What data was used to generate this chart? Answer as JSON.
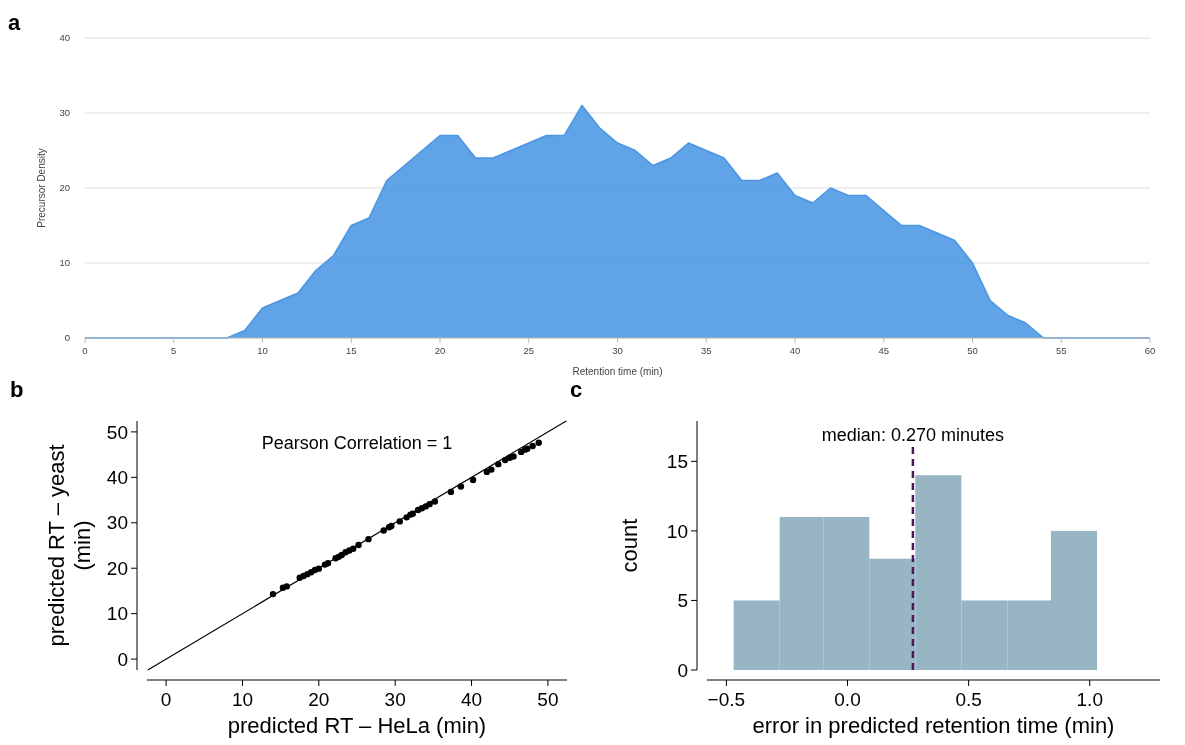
{
  "chart_data": [
    {
      "type": "area",
      "title": "a",
      "xlabel": "Retention time (min)",
      "ylabel": "Precursor Density",
      "xlim": [
        0,
        60
      ],
      "ylim": [
        0,
        40
      ],
      "xticks": [
        0,
        5,
        10,
        15,
        20,
        25,
        30,
        35,
        40,
        45,
        50,
        55,
        60
      ],
      "yticks": [
        0,
        10,
        20,
        30,
        40
      ],
      "grid": "y",
      "x": [
        0,
        1,
        2,
        3,
        4,
        5,
        6,
        7,
        8,
        9,
        10,
        11,
        12,
        13,
        14,
        15,
        16,
        17,
        18,
        19,
        20,
        21,
        22,
        23,
        24,
        25,
        26,
        27,
        28,
        29,
        30,
        31,
        32,
        33,
        34,
        35,
        36,
        37,
        38,
        39,
        40,
        41,
        42,
        43,
        44,
        45,
        46,
        47,
        48,
        49,
        50,
        51,
        52,
        53,
        54,
        55,
        56,
        57,
        58,
        59,
        60
      ],
      "series": [
        {
          "color": "#4a96e3",
          "values": [
            0,
            0,
            0,
            0,
            0,
            0,
            0,
            0,
            0,
            1,
            4,
            5,
            6,
            9,
            11,
            15,
            16,
            21,
            23,
            25,
            27,
            27,
            24,
            24,
            25,
            26,
            27,
            27,
            31,
            28,
            26,
            25,
            23,
            24,
            26,
            25,
            24,
            21,
            21,
            22,
            19,
            18,
            20,
            19,
            19,
            17,
            15,
            15,
            14,
            13,
            10,
            5,
            3,
            2,
            0,
            0,
            0,
            0,
            0,
            0,
            0
          ]
        }
      ]
    },
    {
      "type": "scatter",
      "title": "b",
      "xlabel": "predicted RT – HeLa (min)",
      "ylabel": "predicted RT – yeast\n(min)",
      "xlim": [
        -2.5,
        52.5
      ],
      "ylim": [
        -2.4,
        52.4
      ],
      "xticks": [
        0,
        10,
        20,
        30,
        40,
        50
      ],
      "yticks": [
        0,
        10,
        20,
        30,
        40,
        50
      ],
      "grid": false,
      "annotations": [
        "Pearson Correlation = 1"
      ],
      "series": [
        {
          "type": "line",
          "color": "#000000",
          "x": [
            -2.4,
            52.4
          ],
          "values": [
            -2.4,
            52.4
          ]
        },
        {
          "type": "scatter",
          "color": "#000000",
          "marker": "circle",
          "x": [
            14,
            15.3,
            15.8,
            17.5,
            18,
            18.5,
            19,
            19.5,
            20,
            20.8,
            21.2,
            22.2,
            22.6,
            23,
            23.5,
            24,
            24.5,
            25.2,
            26.5,
            28.5,
            29.2,
            29.5,
            30.6,
            31.5,
            32,
            32.3,
            33,
            33.5,
            34,
            34.5,
            35.2,
            37.3,
            38.6,
            40.2,
            42,
            42.6,
            43.5,
            44.4,
            45,
            45.5,
            46.5,
            47,
            47.3,
            48,
            48.8
          ],
          "values": [
            14.3,
            15.7,
            16,
            17.9,
            18.3,
            18.7,
            19.1,
            19.6,
            19.9,
            20.8,
            21.1,
            22.2,
            22.5,
            22.9,
            23.5,
            23.9,
            24.3,
            25.1,
            26.4,
            28.3,
            29,
            29.3,
            30.3,
            31.2,
            31.8,
            32,
            32.8,
            33.2,
            33.6,
            34.1,
            34.7,
            36.8,
            38,
            39.4,
            41.2,
            41.7,
            42.9,
            43.8,
            44.3,
            44.6,
            45.6,
            46.1,
            46.3,
            46.9,
            47.6
          ]
        }
      ]
    },
    {
      "type": "histogram",
      "title": "c",
      "xlabel": "error in predicted retention time (min)",
      "ylabel": "count",
      "xlim": [
        -0.58,
        1.29
      ],
      "ylim": [
        0,
        17.9
      ],
      "xticks": [
        {
          "value": -0.5,
          "label": "−0.5"
        },
        {
          "value": 0,
          "label": "0.0"
        },
        {
          "value": 0.5,
          "label": "0.5"
        },
        {
          "value": 1,
          "label": "1.0"
        }
      ],
      "yticks": [
        0,
        5,
        10,
        15
      ],
      "grid": false,
      "color": "#97b5c3",
      "bins": [
        -0.47,
        -0.28,
        -0.1,
        0.09,
        0.28,
        0.47,
        0.66,
        0.84,
        1.03
      ],
      "values": [
        5,
        11,
        11,
        8,
        14,
        5,
        5,
        10
      ],
      "ref_lines": [
        {
          "axis": "x",
          "value": 0.27,
          "label": "median: 0.270 minutes",
          "color": "#4b1a5a",
          "line_style": "dashed"
        }
      ]
    }
  ]
}
